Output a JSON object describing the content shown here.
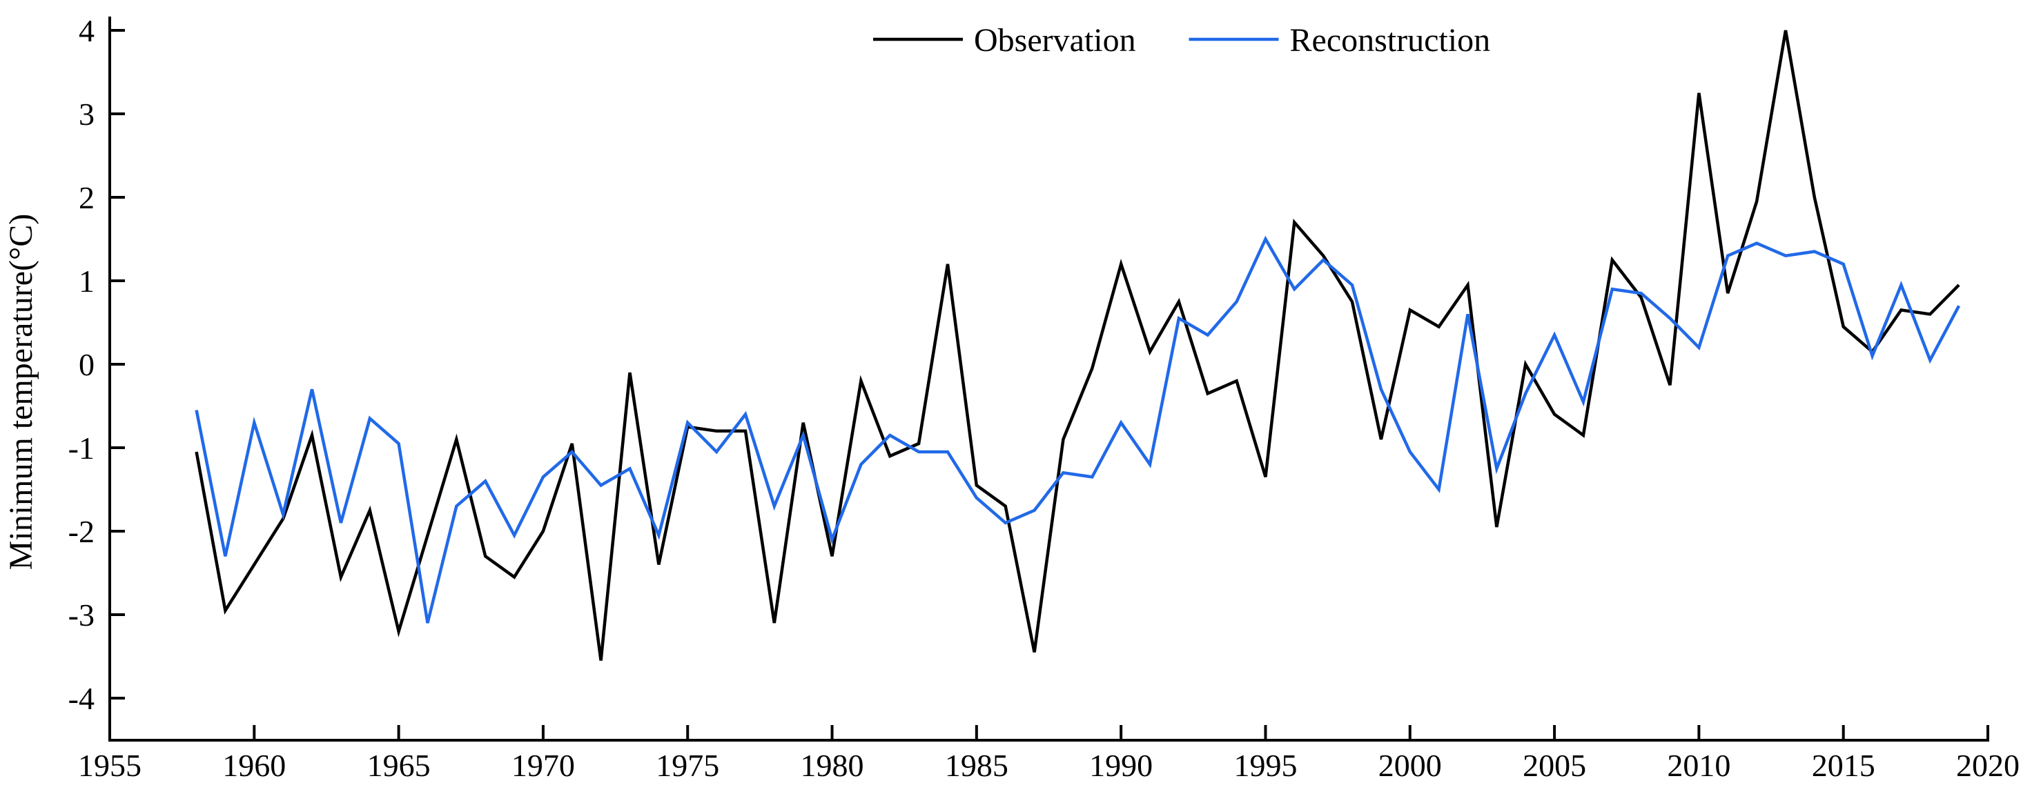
{
  "figure": {
    "background_color": "#ffffff",
    "axis_color": "#000000"
  },
  "chart_data": {
    "type": "line",
    "title": "",
    "xlabel": "",
    "ylabel": "Minimum temperature(°C)",
    "xlim": [
      1955,
      2020
    ],
    "ylim": [
      -4,
      4
    ],
    "x_ticks": [
      1955,
      1960,
      1965,
      1970,
      1975,
      1980,
      1985,
      1990,
      1995,
      2000,
      2005,
      2010,
      2015,
      2020
    ],
    "y_ticks": [
      -4,
      -3,
      -2,
      -1,
      0,
      1,
      2,
      3,
      4
    ],
    "grid": false,
    "legend_position": "top-center",
    "start_year": 1958,
    "x": [
      1958,
      1959,
      1960,
      1961,
      1962,
      1963,
      1964,
      1965,
      1966,
      1967,
      1968,
      1969,
      1970,
      1971,
      1972,
      1973,
      1974,
      1975,
      1976,
      1977,
      1978,
      1979,
      1980,
      1981,
      1982,
      1983,
      1984,
      1985,
      1986,
      1987,
      1988,
      1989,
      1990,
      1991,
      1992,
      1993,
      1994,
      1995,
      1996,
      1997,
      1998,
      1999,
      2000,
      2001,
      2002,
      2003,
      2004,
      2005,
      2006,
      2007,
      2008,
      2009,
      2010,
      2011,
      2012,
      2013,
      2014,
      2015,
      2016,
      2017,
      2018,
      2019
    ],
    "series": [
      {
        "name": "Observation",
        "color": "#000000",
        "values": [
          -1.05,
          -2.95,
          -2.4,
          -1.85,
          -0.85,
          -2.55,
          -1.75,
          -3.2,
          -2.05,
          -0.9,
          -2.3,
          -2.55,
          -2.0,
          -0.95,
          -3.55,
          -0.1,
          -2.4,
          -0.75,
          -0.8,
          -0.8,
          -3.1,
          -0.7,
          -2.3,
          -0.2,
          -1.1,
          -0.95,
          1.2,
          -1.45,
          -1.7,
          -3.45,
          -0.9,
          -0.05,
          1.2,
          0.15,
          0.75,
          -0.35,
          -0.2,
          -1.35,
          1.7,
          1.3,
          0.75,
          -0.9,
          0.65,
          0.45,
          0.95,
          -1.95,
          0.0,
          -0.6,
          -0.85,
          1.25,
          0.8,
          -0.25,
          3.25,
          0.85,
          1.95,
          4.0,
          2.0,
          0.45,
          0.15,
          0.65,
          0.6,
          0.95
        ]
      },
      {
        "name": "Reconstruction",
        "color": "#2169E8",
        "values": [
          -0.55,
          -2.3,
          -0.7,
          -1.8,
          -0.3,
          -1.9,
          -0.65,
          -0.95,
          -3.1,
          -1.7,
          -1.4,
          -2.05,
          -1.35,
          -1.05,
          -1.45,
          -1.25,
          -2.05,
          -0.7,
          -1.05,
          -0.6,
          -1.7,
          -0.85,
          -2.1,
          -1.2,
          -0.85,
          -1.05,
          -1.05,
          -1.6,
          -1.9,
          -1.75,
          -1.3,
          -1.35,
          -0.7,
          -1.2,
          0.55,
          0.35,
          0.75,
          1.5,
          0.9,
          1.25,
          0.95,
          -0.3,
          -1.05,
          -1.5,
          0.6,
          -1.25,
          -0.35,
          0.35,
          -0.45,
          0.9,
          0.85,
          0.55,
          0.2,
          1.3,
          1.45,
          1.3,
          1.35,
          1.2,
          0.1,
          0.95,
          0.05,
          0.7
        ]
      }
    ]
  },
  "legend": {
    "items": [
      {
        "label": "Observation",
        "color": "#000000"
      },
      {
        "label": "Reconstruction",
        "color": "#2169E8"
      }
    ]
  }
}
